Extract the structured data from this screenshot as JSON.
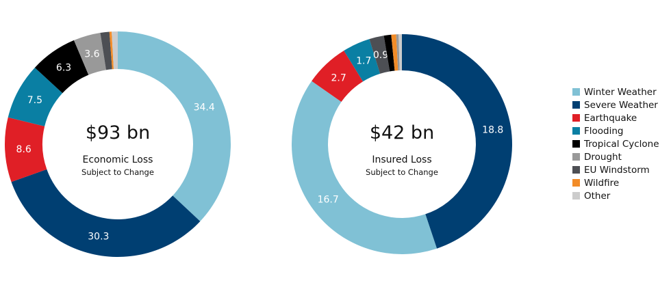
{
  "chart_data": [
    {
      "type": "pie",
      "variant": "donut",
      "title": "$93 bn",
      "subtitle": "Economic Loss",
      "note": "Subject to Change",
      "start": "top",
      "direction": "clockwise",
      "slices": [
        {
          "label": "Winter Weather",
          "value": 34.4,
          "data_label": "34.4"
        },
        {
          "label": "Severe Weather",
          "value": 30.3,
          "data_label": "30.3"
        },
        {
          "label": "Earthquake",
          "value": 8.6,
          "data_label": "8.6"
        },
        {
          "label": "Flooding",
          "value": 7.5,
          "data_label": "7.5"
        },
        {
          "label": "Tropical Cyclone",
          "value": 6.3,
          "data_label": "6.3"
        },
        {
          "label": "Drought",
          "value": 3.6,
          "data_label": "3.6"
        },
        {
          "label": "EU Windstorm",
          "value": 1.2,
          "data_label": ""
        },
        {
          "label": "Wildfire",
          "value": 0.3,
          "data_label": ""
        },
        {
          "label": "Other",
          "value": 0.8,
          "data_label": ""
        }
      ]
    },
    {
      "type": "pie",
      "variant": "donut",
      "title": "$42 bn",
      "subtitle": "Insured Loss",
      "note": "Subject to Change",
      "start": "top",
      "direction": "clockwise",
      "slices": [
        {
          "label": "Severe Weather",
          "value": 18.8,
          "data_label": "18.8"
        },
        {
          "label": "Winter Weather",
          "value": 16.7,
          "data_label": "16.7"
        },
        {
          "label": "Earthquake",
          "value": 2.7,
          "data_label": "2.7"
        },
        {
          "label": "Flooding",
          "value": 1.7,
          "data_label": "1.7"
        },
        {
          "label": "EU Windstorm",
          "value": 0.9,
          "data_label": "0.9"
        },
        {
          "label": "Tropical Cyclone",
          "value": 0.45,
          "data_label": ""
        },
        {
          "label": "Wildfire",
          "value": 0.3,
          "data_label": ""
        },
        {
          "label": "Drought",
          "value": 0.15,
          "data_label": ""
        },
        {
          "label": "Other",
          "value": 0.2,
          "data_label": ""
        }
      ]
    }
  ],
  "legend": {
    "placement": "right",
    "items": [
      {
        "label": "Winter Weather",
        "color": "#80c1d5"
      },
      {
        "label": "Severe Weather",
        "color": "#003f72"
      },
      {
        "label": "Earthquake",
        "color": "#e01f26"
      },
      {
        "label": "Flooding",
        "color": "#0a7fa3"
      },
      {
        "label": "Tropical Cyclone",
        "color": "#000000"
      },
      {
        "label": "Drought",
        "color": "#999999"
      },
      {
        "label": "EU Windstorm",
        "color": "#4d4f54"
      },
      {
        "label": "Wildfire",
        "color": "#f28c28"
      },
      {
        "label": "Other",
        "color": "#cccccc"
      }
    ]
  }
}
